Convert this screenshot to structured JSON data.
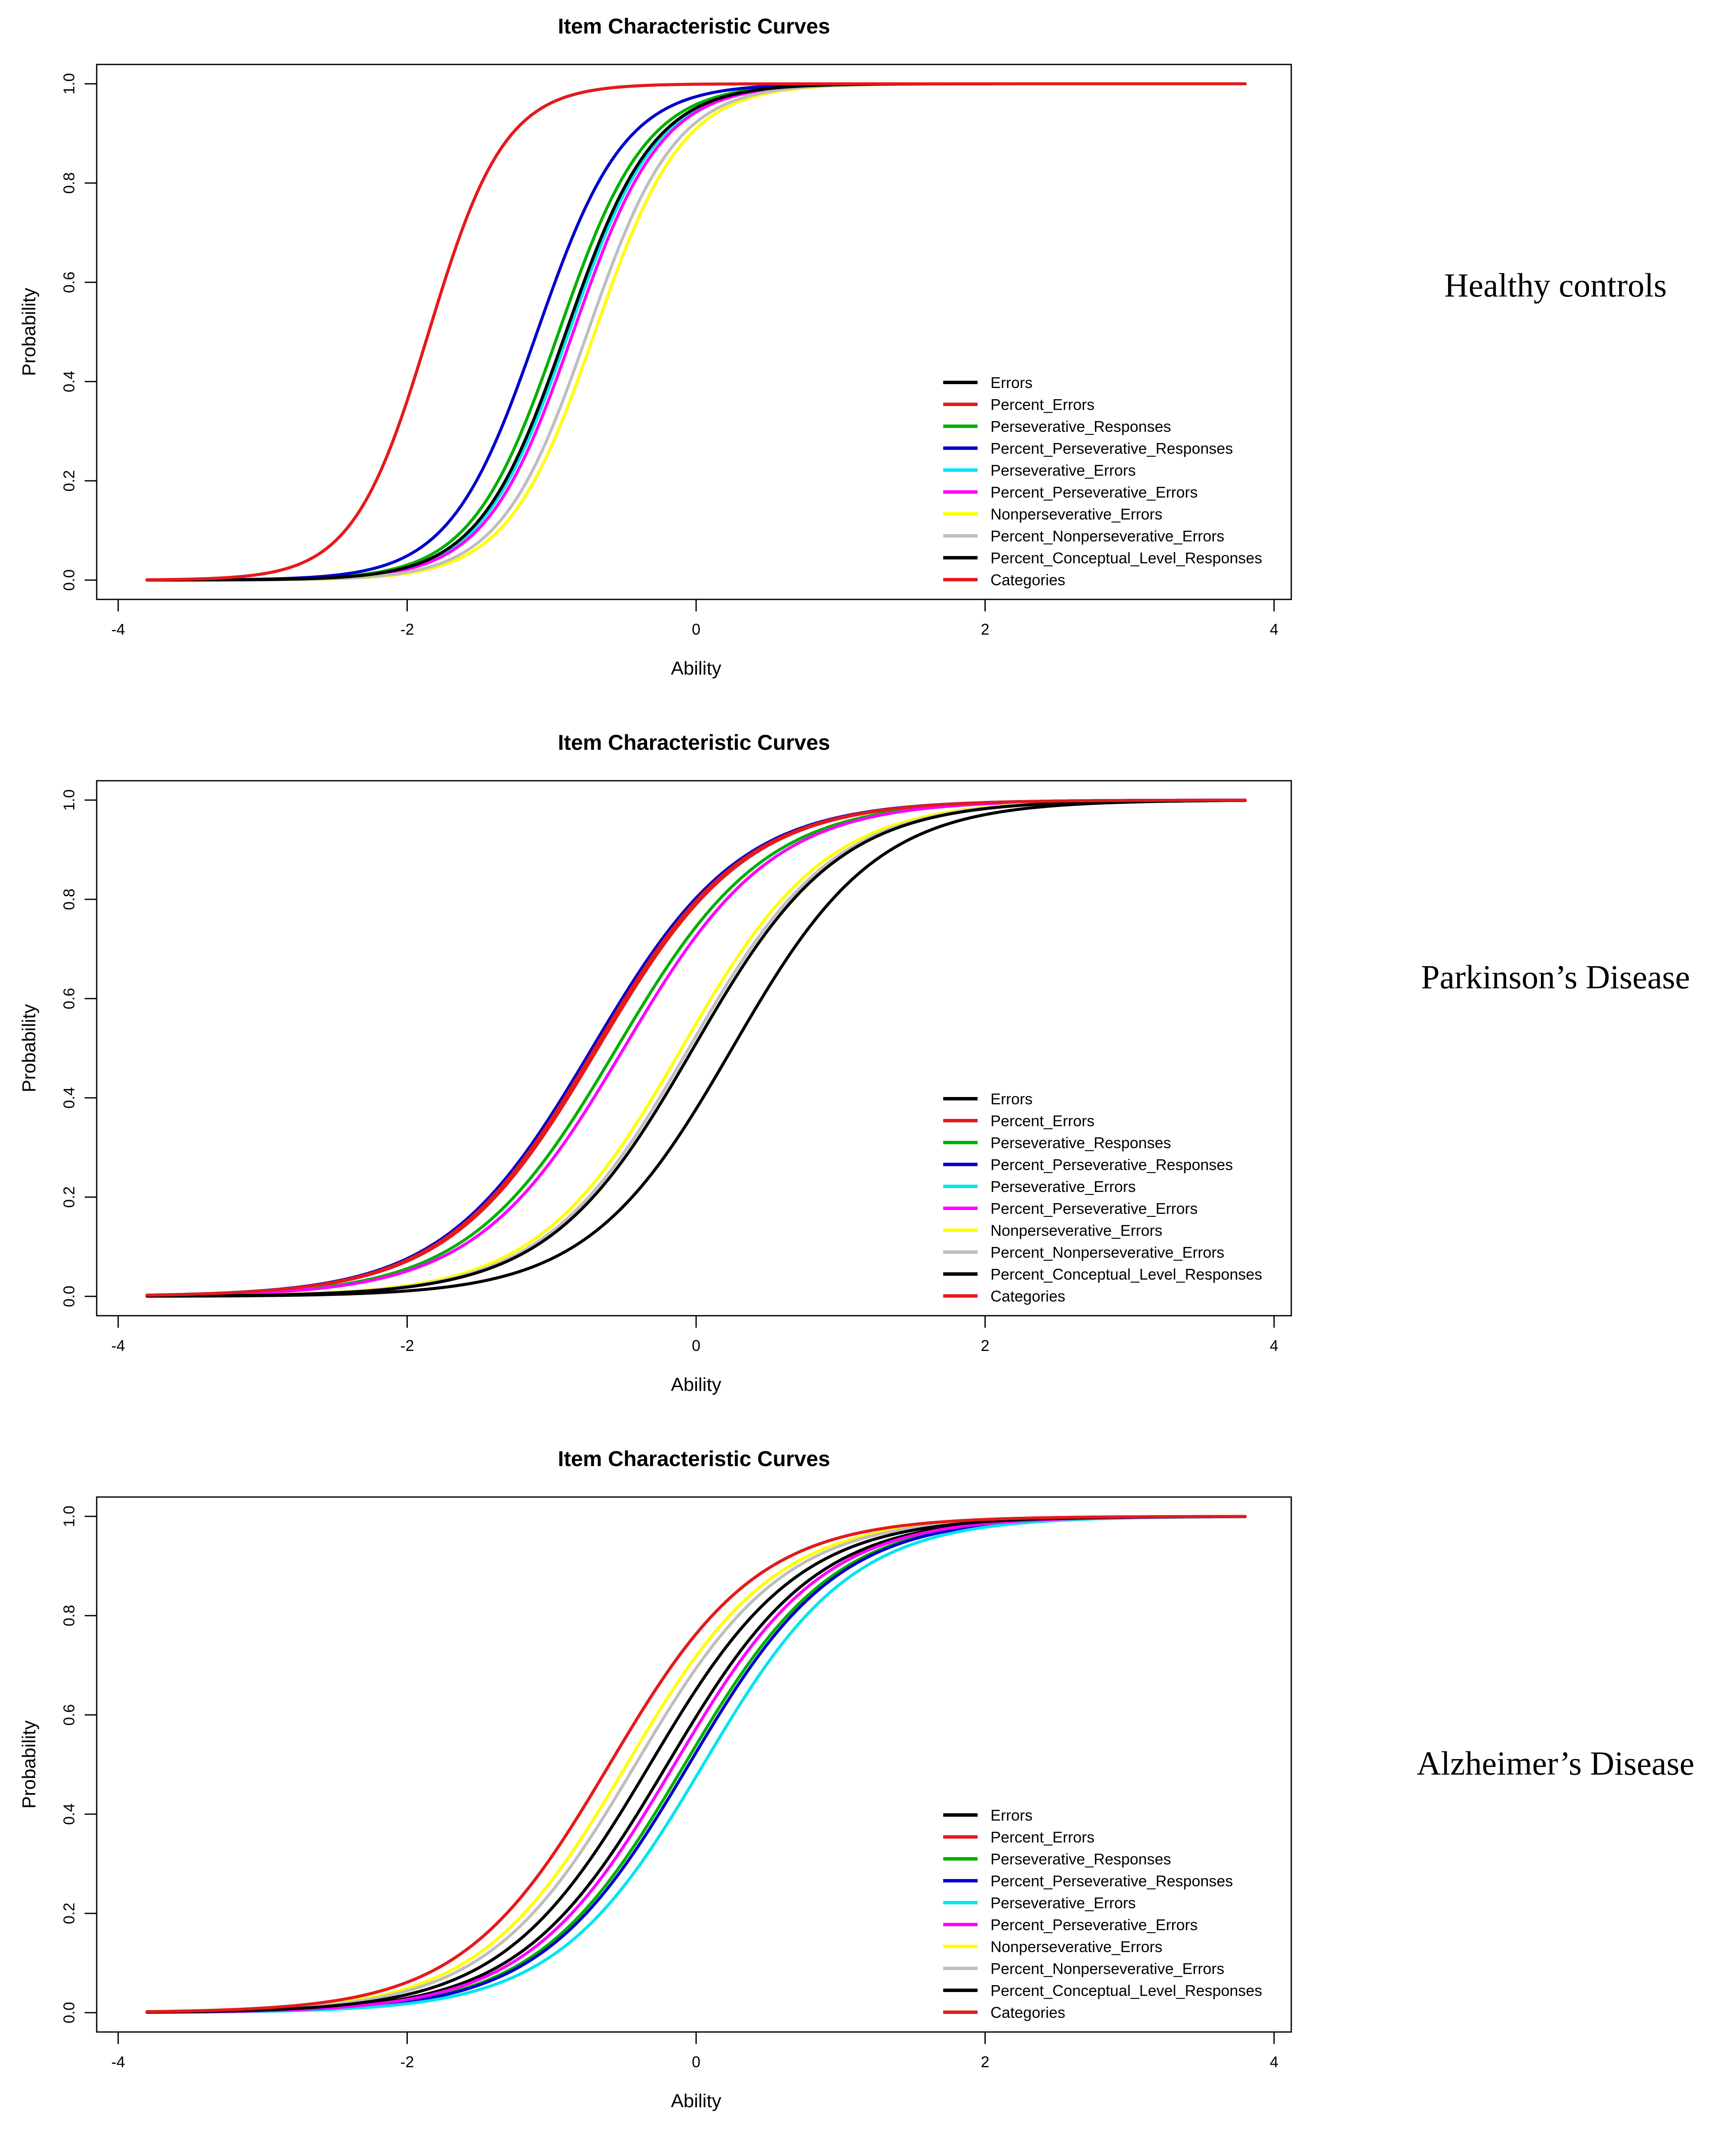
{
  "palette": {
    "black": "#000000",
    "red": "#e41a1c",
    "green": "#00b000",
    "blue": "#0000cc",
    "cyan": "#00e5ee",
    "magenta": "#ff00ff",
    "yellow": "#ffff00",
    "gray": "#bebebe"
  },
  "chart_data": [
    {
      "type": "line",
      "title": "Item Characteristic Curves",
      "group_label": "Healthy controls",
      "xlabel": "Ability",
      "ylabel": "Probability",
      "xlim": [
        -4,
        4
      ],
      "ylim": [
        0,
        1
      ],
      "x_range": [
        -3.8,
        3.8
      ],
      "xticks": [
        "-4",
        "-2",
        "0",
        "2",
        "4"
      ],
      "yticks": [
        "0.0",
        "0.2",
        "0.4",
        "0.6",
        "0.8",
        "1.0"
      ],
      "legend_position": "bottom-right",
      "series": [
        {
          "name": "Errors",
          "color": "#000000",
          "location": -0.9,
          "slope": 3.3
        },
        {
          "name": "Percent_Errors",
          "color": "#e41a1c",
          "location": -1.85,
          "slope": 3.8
        },
        {
          "name": "Perseverative_Responses",
          "color": "#00b000",
          "location": -0.95,
          "slope": 3.3
        },
        {
          "name": "Percent_Perseverative_Responses",
          "color": "#0000cc",
          "location": -1.1,
          "slope": 3.3
        },
        {
          "name": "Perseverative_Errors",
          "color": "#00e5ee",
          "location": -0.88,
          "slope": 3.3
        },
        {
          "name": "Percent_Perseverative_Errors",
          "color": "#ff00ff",
          "location": -0.85,
          "slope": 3.3
        },
        {
          "name": "Nonperseverative_Errors",
          "color": "#ffff00",
          "location": -0.7,
          "slope": 3.3
        },
        {
          "name": "Percent_Nonperseverative_Errors",
          "color": "#bebebe",
          "location": -0.75,
          "slope": 3.3
        },
        {
          "name": "Percent_Conceptual_Level_Responses",
          "color": "#000000",
          "location": -0.9,
          "slope": 3.3
        },
        {
          "name": "Categories",
          "color": "#e41a1c",
          "location": -1.85,
          "slope": 3.8
        }
      ]
    },
    {
      "type": "line",
      "title": "Item Characteristic Curves",
      "group_label": "Parkinson’s Disease",
      "xlabel": "Ability",
      "ylabel": "Probability",
      "xlim": [
        -4,
        4
      ],
      "ylim": [
        0,
        1
      ],
      "x_range": [
        -3.8,
        3.8
      ],
      "xticks": [
        "-4",
        "-2",
        "0",
        "2",
        "4"
      ],
      "yticks": [
        "0.0",
        "0.2",
        "0.4",
        "0.6",
        "0.8",
        "1.0"
      ],
      "legend_position": "bottom-right",
      "series": [
        {
          "name": "Errors",
          "color": "#000000",
          "location": 0.25,
          "slope": 2.0
        },
        {
          "name": "Percent_Errors",
          "color": "#e41a1c",
          "location": -0.68,
          "slope": 1.95
        },
        {
          "name": "Perseverative_Responses",
          "color": "#00b000",
          "location": -0.55,
          "slope": 1.95
        },
        {
          "name": "Percent_Perseverative_Responses",
          "color": "#0000cc",
          "location": -0.72,
          "slope": 1.95
        },
        {
          "name": "Perseverative_Errors",
          "color": "#00e5ee",
          "location": -0.5,
          "slope": 1.95
        },
        {
          "name": "Percent_Perseverative_Errors",
          "color": "#ff00ff",
          "location": -0.5,
          "slope": 1.95
        },
        {
          "name": "Nonperseverative_Errors",
          "color": "#ffff00",
          "location": -0.1,
          "slope": 2.0
        },
        {
          "name": "Percent_Nonperseverative_Errors",
          "color": "#bebebe",
          "location": -0.05,
          "slope": 2.0
        },
        {
          "name": "Percent_Conceptual_Level_Responses",
          "color": "#000000",
          "location": -0.02,
          "slope": 2.0
        },
        {
          "name": "Categories",
          "color": "#e41a1c",
          "location": -0.7,
          "slope": 1.95
        }
      ]
    },
    {
      "type": "line",
      "title": "Item Characteristic Curves",
      "group_label": "Alzheimer’s Disease",
      "xlabel": "Ability",
      "ylabel": "Probability",
      "xlim": [
        -4,
        4
      ],
      "ylim": [
        0,
        1
      ],
      "x_range": [
        -3.8,
        3.8
      ],
      "xticks": [
        "-4",
        "-2",
        "0",
        "2",
        "4"
      ],
      "yticks": [
        "0.0",
        "0.2",
        "0.4",
        "0.6",
        "0.8",
        "1.0"
      ],
      "legend_position": "bottom-right",
      "series": [
        {
          "name": "Errors",
          "color": "#000000",
          "location": -0.2,
          "slope": 1.95
        },
        {
          "name": "Percent_Errors",
          "color": "#e41a1c",
          "location": -0.6,
          "slope": 1.95
        },
        {
          "name": "Perseverative_Responses",
          "color": "#00b000",
          "location": -0.08,
          "slope": 1.95
        },
        {
          "name": "Percent_Perseverative_Responses",
          "color": "#0000cc",
          "location": -0.05,
          "slope": 1.95
        },
        {
          "name": "Perseverative_Errors",
          "color": "#00e5ee",
          "location": 0.05,
          "slope": 1.95
        },
        {
          "name": "Percent_Perseverative_Errors",
          "color": "#ff00ff",
          "location": -0.15,
          "slope": 1.95
        },
        {
          "name": "Nonperseverative_Errors",
          "color": "#ffff00",
          "location": -0.48,
          "slope": 1.95
        },
        {
          "name": "Percent_Nonperseverative_Errors",
          "color": "#bebebe",
          "location": -0.42,
          "slope": 1.95
        },
        {
          "name": "Percent_Conceptual_Level_Responses",
          "color": "#000000",
          "location": -0.32,
          "slope": 1.95
        },
        {
          "name": "Categories",
          "color": "#e41a1c",
          "location": -0.6,
          "slope": 1.95
        }
      ]
    }
  ]
}
